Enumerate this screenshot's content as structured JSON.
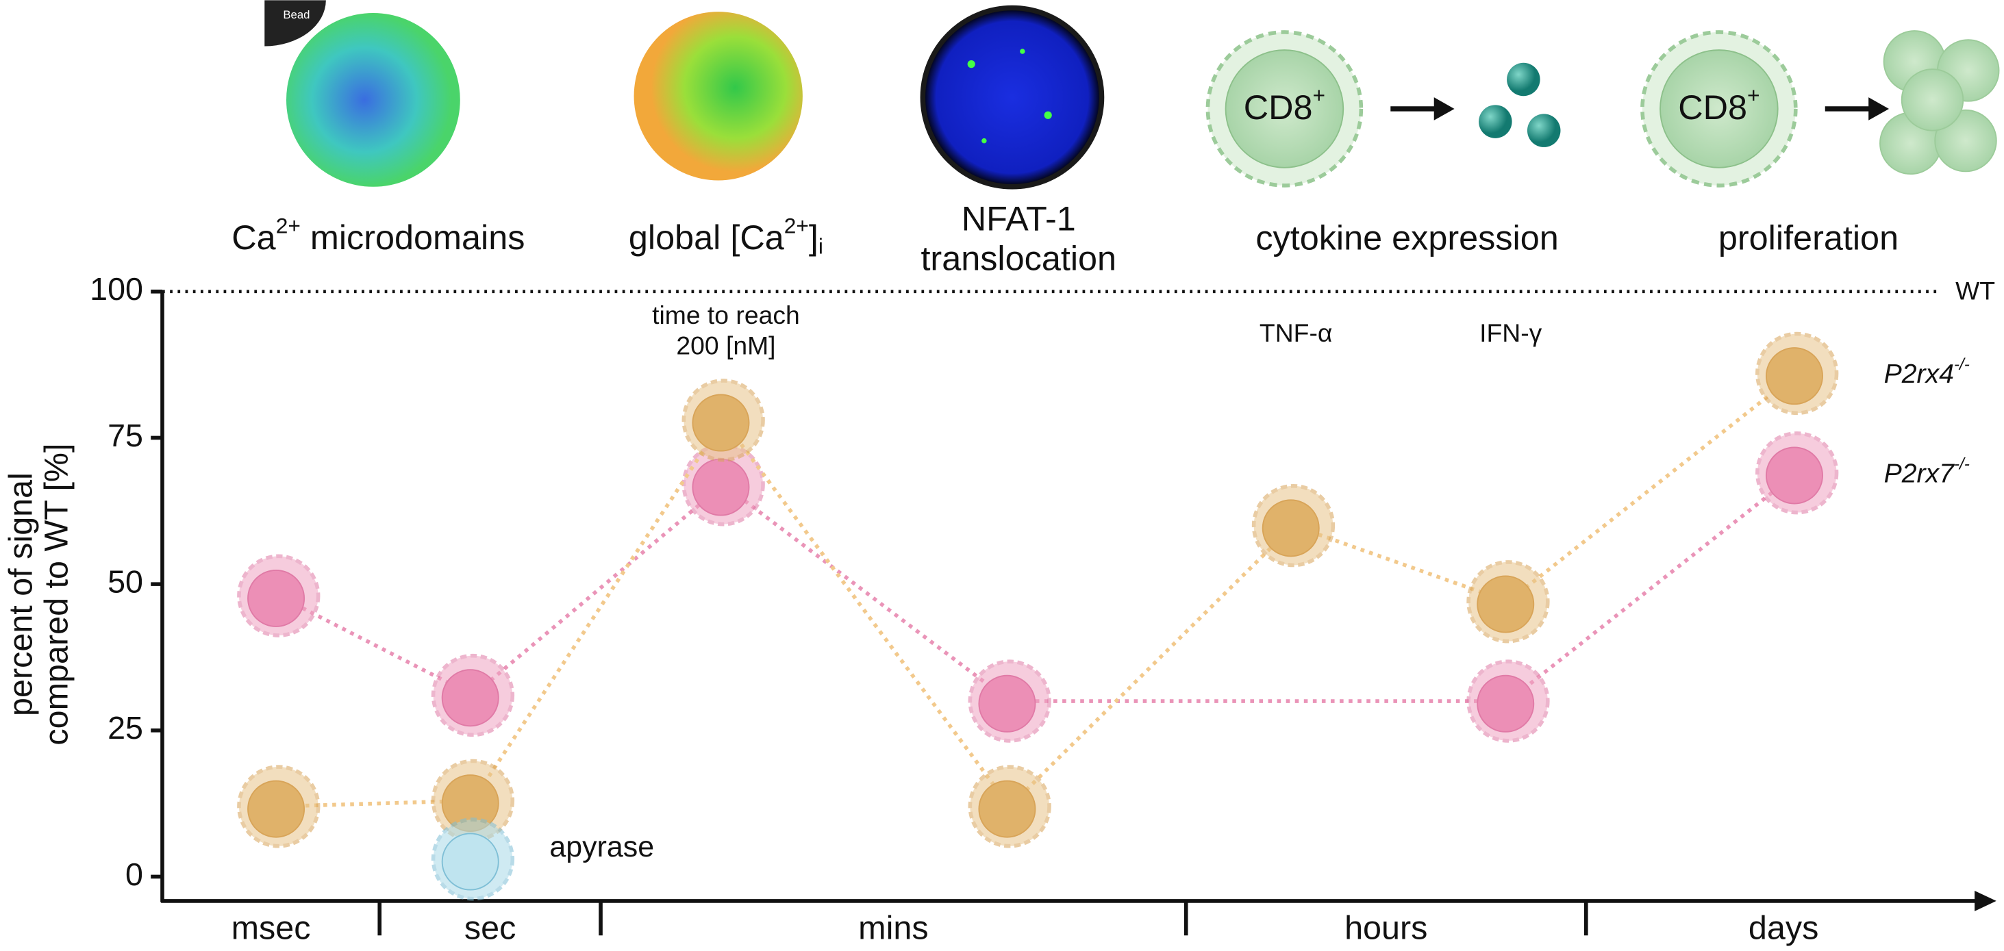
{
  "chart_data": {
    "type": "line",
    "captions": [
      {
        "parts": [
          "Ca",
          "2+",
          " microdomains"
        ]
      },
      {
        "parts": [
          "global [Ca",
          "2+",
          "]",
          "i"
        ]
      },
      {
        "lines": [
          "NFAT-1",
          "translocation"
        ]
      },
      {
        "parts": [
          "cytokine expression"
        ]
      },
      {
        "parts": [
          "proliferation"
        ]
      }
    ],
    "image_labels": {
      "bead": "Bead",
      "cd8": [
        "CD8",
        "+"
      ]
    },
    "ylabel": [
      "percent of signal",
      "compared to WT [%]"
    ],
    "reference": {
      "value": 100,
      "label": "WT"
    },
    "ylim": [
      0,
      100
    ],
    "yticks": [
      0,
      25,
      50,
      75,
      100
    ],
    "timescale": [
      "msec",
      "sec",
      "mins",
      "hours",
      "days"
    ],
    "categories": [
      null,
      null,
      null,
      null,
      null,
      null,
      null
    ],
    "annotations": [
      {
        "index": 2,
        "lines": [
          "time to reach",
          "200 [nM]"
        ]
      },
      {
        "index": 4,
        "lines": [
          "TNF-α"
        ]
      },
      {
        "index": 5,
        "lines": [
          "IFN-γ"
        ]
      }
    ],
    "series": [
      {
        "name": "P2rx4",
        "name_sup": "-/-",
        "color": "#e8c48a",
        "values": [
          12,
          13,
          78,
          12,
          60,
          47,
          86
        ]
      },
      {
        "name": "P2rx7",
        "name_sup": "-/-",
        "color": "#f0a3c2",
        "values": [
          48,
          31,
          67,
          30,
          null,
          30,
          69
        ]
      },
      {
        "name": "apyrase",
        "color": "#a9d9e8",
        "values": [
          null,
          3,
          null,
          null,
          null,
          null,
          null
        ]
      }
    ]
  }
}
